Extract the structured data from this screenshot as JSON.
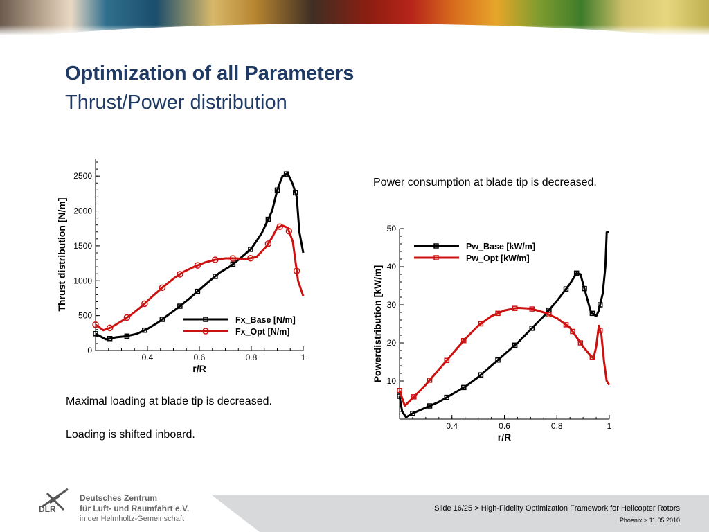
{
  "slide": {
    "title": "Optimization of all Parameters",
    "subtitle": "Thrust/Power distribution",
    "note_power": "Power consumption at blade tip is decreased.",
    "note_loading": "Maximal loading at blade tip is decreased.",
    "note_shift": "Loading is shifted inboard."
  },
  "footer": {
    "org_line1": "Deutsches Zentrum",
    "org_line2": "für Luft- und Raumfahrt e.V.",
    "org_line3": "in der Helmholtz-Gemeinschaft",
    "logo_text": "DLR",
    "slide_info": "Slide 16/25 > High-Fidelity Optimization Framework for Helicopter Rotors",
    "slide_date": "Phoenix > 11.05.2010"
  },
  "colors": {
    "base": "#000000",
    "opt": "#cc1111",
    "title": "#1f3a64"
  },
  "chart_data": [
    {
      "type": "line",
      "xlabel": "r/R",
      "ylabel": "Thrust distribution [N/m]",
      "xlim": [
        0.2,
        1.0
      ],
      "ylim": [
        0,
        2750
      ],
      "xticks": [
        0.4,
        0.6,
        0.8,
        1
      ],
      "yticks": [
        0,
        500,
        1000,
        1500,
        2000,
        2500
      ],
      "xtick_labels": [
        "0.4",
        "0.6",
        "0.8",
        "1"
      ],
      "ytick_labels": [
        "0",
        "500",
        "1000",
        "1500",
        "2000",
        "2500"
      ],
      "legend_position": "lower-right",
      "series": [
        {
          "name": "Fx_Base [N/m]",
          "color": "#000000",
          "marker": "square",
          "x": [
            0.2,
            0.24,
            0.28,
            0.32,
            0.36,
            0.4,
            0.44,
            0.48,
            0.52,
            0.56,
            0.6,
            0.64,
            0.68,
            0.72,
            0.76,
            0.8,
            0.84,
            0.88,
            0.9,
            0.92,
            0.94,
            0.96,
            0.975,
            0.985,
            1.0
          ],
          "y": [
            240,
            160,
            190,
            205,
            240,
            310,
            400,
            510,
            620,
            740,
            870,
            1000,
            1120,
            1210,
            1330,
            1460,
            1680,
            2000,
            2300,
            2500,
            2540,
            2380,
            2200,
            1700,
            1400
          ]
        },
        {
          "name": "Fx_Opt   [N/m]",
          "color": "#cc1111",
          "marker": "circle",
          "x": [
            0.2,
            0.23,
            0.26,
            0.3,
            0.34,
            0.38,
            0.42,
            0.46,
            0.5,
            0.54,
            0.58,
            0.62,
            0.66,
            0.7,
            0.74,
            0.78,
            0.82,
            0.86,
            0.88,
            0.9,
            0.92,
            0.94,
            0.96,
            0.98,
            1.0
          ],
          "y": [
            370,
            290,
            330,
            420,
            520,
            640,
            780,
            910,
            1030,
            1130,
            1200,
            1260,
            1300,
            1320,
            1320,
            1310,
            1340,
            1500,
            1620,
            1760,
            1790,
            1760,
            1560,
            1000,
            780
          ]
        }
      ],
      "marker_x": {
        "base": [
          0.2,
          0.255,
          0.321,
          0.389,
          0.457,
          0.525,
          0.593,
          0.661,
          0.729,
          0.797,
          0.865,
          0.9,
          0.935,
          0.97
        ],
        "opt": [
          0.2,
          0.255,
          0.321,
          0.389,
          0.457,
          0.525,
          0.593,
          0.661,
          0.729,
          0.797,
          0.865,
          0.91,
          0.945,
          0.975
        ]
      }
    },
    {
      "type": "line",
      "xlabel": "r/R",
      "ylabel": "Powerdistribution [kW/m]",
      "xlim": [
        0.2,
        1.0
      ],
      "ylim": [
        0,
        50
      ],
      "xticks": [
        0.4,
        0.6,
        0.8,
        1
      ],
      "yticks": [
        10,
        20,
        30,
        40,
        50
      ],
      "xtick_labels": [
        "0.4",
        "0.6",
        "0.8",
        "1"
      ],
      "ytick_labels": [
        "10",
        "20",
        "30",
        "40",
        "50"
      ],
      "legend_position": "upper-left",
      "series": [
        {
          "name": "Pw_Base [kW/m]",
          "color": "#000000",
          "marker": "square",
          "x": [
            0.2,
            0.21,
            0.225,
            0.25,
            0.3,
            0.35,
            0.4,
            0.45,
            0.5,
            0.55,
            0.6,
            0.65,
            0.7,
            0.75,
            0.8,
            0.85,
            0.875,
            0.89,
            0.91,
            0.93,
            0.95,
            0.96,
            0.975,
            0.985,
            0.99,
            1.0
          ],
          "y": [
            6,
            2,
            0.5,
            1.5,
            3,
            4.5,
            6.5,
            8.5,
            11,
            14,
            17,
            20,
            23.5,
            27,
            31,
            35.5,
            38.3,
            38,
            33,
            28,
            27,
            28.5,
            33,
            40,
            49,
            49
          ]
        },
        {
          "name": "Pw_Opt [kW/m]",
          "color": "#cc1111",
          "marker": "square",
          "x": [
            0.2,
            0.22,
            0.25,
            0.3,
            0.35,
            0.4,
            0.45,
            0.5,
            0.55,
            0.6,
            0.65,
            0.7,
            0.75,
            0.8,
            0.85,
            0.9,
            0.93,
            0.94,
            0.95,
            0.96,
            0.97,
            0.98,
            0.99,
            1.0
          ],
          "y": [
            7.5,
            3.5,
            5.5,
            9,
            13,
            17,
            21,
            24.5,
            27,
            28.5,
            29.2,
            29,
            28,
            26.5,
            24,
            19,
            16.5,
            16,
            19,
            24.5,
            22,
            15,
            10,
            9
          ]
        }
      ],
      "marker_x": {
        "base": [
          0.2,
          0.25,
          0.315,
          0.38,
          0.445,
          0.51,
          0.575,
          0.64,
          0.705,
          0.77,
          0.835,
          0.875,
          0.905,
          0.935,
          0.965
        ],
        "opt": [
          0.2,
          0.255,
          0.315,
          0.38,
          0.445,
          0.51,
          0.575,
          0.64,
          0.705,
          0.77,
          0.835,
          0.86,
          0.89,
          0.935,
          0.965
        ]
      }
    }
  ]
}
